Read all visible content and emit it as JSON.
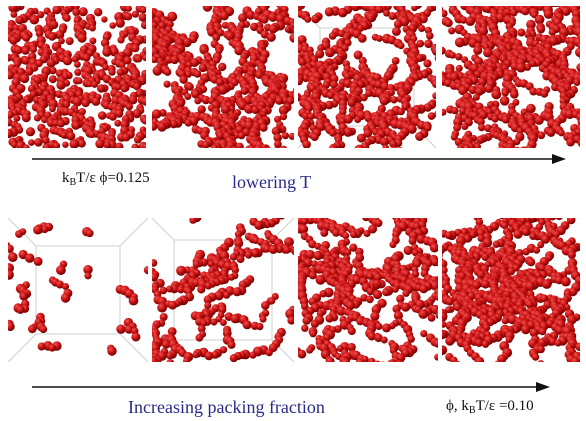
{
  "top_row": {
    "params_label": {
      "k": "k",
      "sub": "B",
      "rest": "T/ε  ϕ=0.125"
    },
    "arrow_label": "lowering T",
    "panels": [
      {
        "name": "T1"
      },
      {
        "name": "T2"
      },
      {
        "name": "T3"
      },
      {
        "name": "T4"
      }
    ]
  },
  "bottom_row": {
    "arrow_label": "Increasing  packing fraction",
    "params_label": {
      "pre": "ϕ,   k",
      "sub": "B",
      "rest": "T/ε =0.10"
    },
    "panels": [
      {
        "name": "P1"
      },
      {
        "name": "P2"
      },
      {
        "name": "P3"
      },
      {
        "name": "P4"
      }
    ]
  },
  "colors": {
    "particle": "#c81010",
    "particle_dark": "#6e0000",
    "particle_light": "#f05050",
    "arrow": "#111111",
    "blue_text": "#2a2a8a"
  }
}
